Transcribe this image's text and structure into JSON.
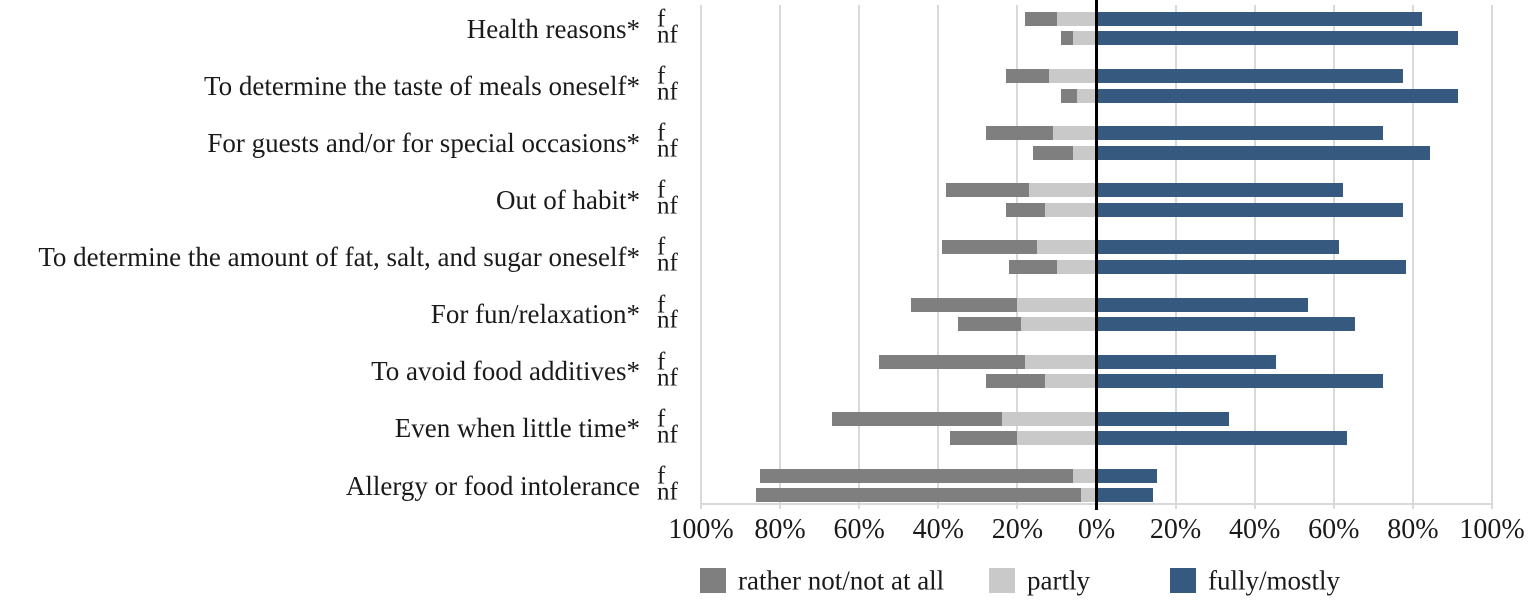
{
  "chart_data": {
    "type": "bar",
    "subtype": "diverging-stacked-horizontal",
    "title": "",
    "xlabel": "",
    "ylabel": "",
    "unit": "%",
    "axis_ticks": [
      "100%",
      "80%",
      "60%",
      "40%",
      "20%",
      "0%",
      "20%",
      "40%",
      "60%",
      "80%",
      "100%"
    ],
    "axis_tick_values": [
      -100,
      -80,
      -60,
      -40,
      -20,
      0,
      20,
      40,
      60,
      80,
      100
    ],
    "grid": true,
    "row_labels": [
      "f",
      "nf"
    ],
    "series_order_left_of_zero": [
      "rather_not",
      "partly"
    ],
    "series_order_right_of_zero": [
      "fully"
    ],
    "colors": {
      "rather_not": "#7f7f7f",
      "partly": "#c9c9c9",
      "fully": "#365980",
      "gridline": "#d9d9d9",
      "zero_line": "#000000"
    },
    "categories": [
      {
        "label": "Health reasons*",
        "f": {
          "rather_not": 8,
          "partly": 10,
          "fully": 82
        },
        "nf": {
          "rather_not": 3,
          "partly": 6,
          "fully": 91
        }
      },
      {
        "label": "To determine the taste of meals oneself*",
        "f": {
          "rather_not": 11,
          "partly": 12,
          "fully": 77
        },
        "nf": {
          "rather_not": 4,
          "partly": 5,
          "fully": 91
        }
      },
      {
        "label": "For guests and/or for special occasions*",
        "f": {
          "rather_not": 17,
          "partly": 11,
          "fully": 72
        },
        "nf": {
          "rather_not": 10,
          "partly": 6,
          "fully": 84
        }
      },
      {
        "label": "Out of habit*",
        "f": {
          "rather_not": 21,
          "partly": 17,
          "fully": 62
        },
        "nf": {
          "rather_not": 10,
          "partly": 13,
          "fully": 77
        }
      },
      {
        "label": "To determine the amount of fat, salt, and sugar oneself*",
        "f": {
          "rather_not": 24,
          "partly": 15,
          "fully": 61
        },
        "nf": {
          "rather_not": 12,
          "partly": 10,
          "fully": 78
        }
      },
      {
        "label": "For fun/relaxation*",
        "f": {
          "rather_not": 27,
          "partly": 20,
          "fully": 53
        },
        "nf": {
          "rather_not": 16,
          "partly": 19,
          "fully": 65
        }
      },
      {
        "label": "To avoid food additives*",
        "f": {
          "rather_not": 37,
          "partly": 18,
          "fully": 45
        },
        "nf": {
          "rather_not": 15,
          "partly": 13,
          "fully": 72
        }
      },
      {
        "label": "Even when little time*",
        "f": {
          "rather_not": 43,
          "partly": 24,
          "fully": 33
        },
        "nf": {
          "rather_not": 17,
          "partly": 20,
          "fully": 63
        }
      },
      {
        "label": "Allergy or food intolerance",
        "f": {
          "rather_not": 79,
          "partly": 6,
          "fully": 15
        },
        "nf": {
          "rather_not": 82,
          "partly": 4,
          "fully": 14
        }
      }
    ],
    "legend": [
      {
        "key": "rather_not",
        "label": "rather not/not at all",
        "color": "#7f7f7f"
      },
      {
        "key": "partly",
        "label": "partly",
        "color": "#c9c9c9"
      },
      {
        "key": "fully",
        "label": "fully/mostly",
        "color": "#365980"
      }
    ],
    "legend_position": "bottom"
  }
}
